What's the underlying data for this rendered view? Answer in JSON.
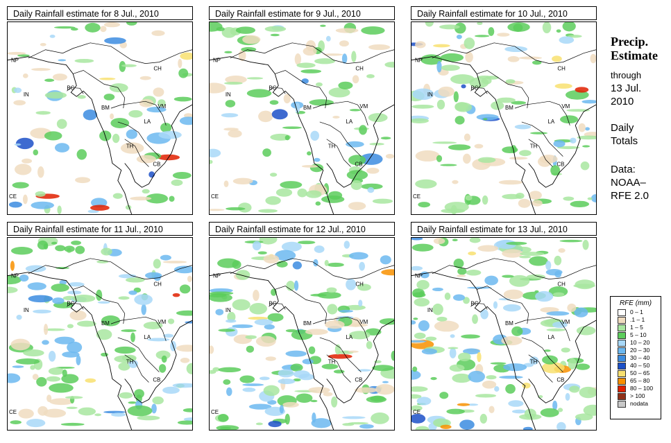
{
  "panels": [
    {
      "title": "Daily Rainfall estimate for  8 Jul., 2010"
    },
    {
      "title": "Daily Rainfall estimate for  9 Jul., 2010"
    },
    {
      "title": "Daily Rainfall estimate for  10 Jul., 2010"
    },
    {
      "title": "Daily Rainfall estimate for  11 Jul., 2010"
    },
    {
      "title": "Daily Rainfall estimate for  12 Jul., 2010"
    },
    {
      "title": "Daily Rainfall estimate for  13 Jul., 2010"
    }
  ],
  "country_labels": {
    "np": "NP",
    "ch": "CH",
    "in": "IN",
    "bg": "BG",
    "bm": "BM",
    "vm": "VM",
    "la": "LA",
    "th": "TH",
    "cb": "CB",
    "ce": "CE"
  },
  "side": {
    "title_line1": "Precip.",
    "title_line2": "Estimate",
    "through": "through",
    "date_line1": "13 Jul.",
    "date_line2": "2010",
    "daily_line1": "Daily",
    "daily_line2": "Totals",
    "data_line1": "Data:",
    "data_line2": "NOAA–",
    "data_line3": "RFE 2.0"
  },
  "legend": {
    "title": "RFE (mm)",
    "items": [
      {
        "label": "0 – 1",
        "color": "#ffffff"
      },
      {
        "label": ".1 – 1",
        "color": "#f0dcc0"
      },
      {
        "label": "1 – 5",
        "color": "#a8e6a0"
      },
      {
        "label": "5 – 10",
        "color": "#5ccd5c"
      },
      {
        "label": "10 – 20",
        "color": "#a8d8f8"
      },
      {
        "label": "20 – 30",
        "color": "#6cb8f0"
      },
      {
        "label": "30 – 40",
        "color": "#3c8ce0"
      },
      {
        "label": "40 – 50",
        "color": "#1c50c8"
      },
      {
        "label": "50 – 65",
        "color": "#f8e070"
      },
      {
        "label": "65 – 80",
        "color": "#f89000"
      },
      {
        "label": "80 – 100",
        "color": "#e02000"
      },
      {
        "label": "> 100",
        "color": "#903018"
      },
      {
        "label": "nodata",
        "color": "#c8c8c8"
      }
    ]
  }
}
